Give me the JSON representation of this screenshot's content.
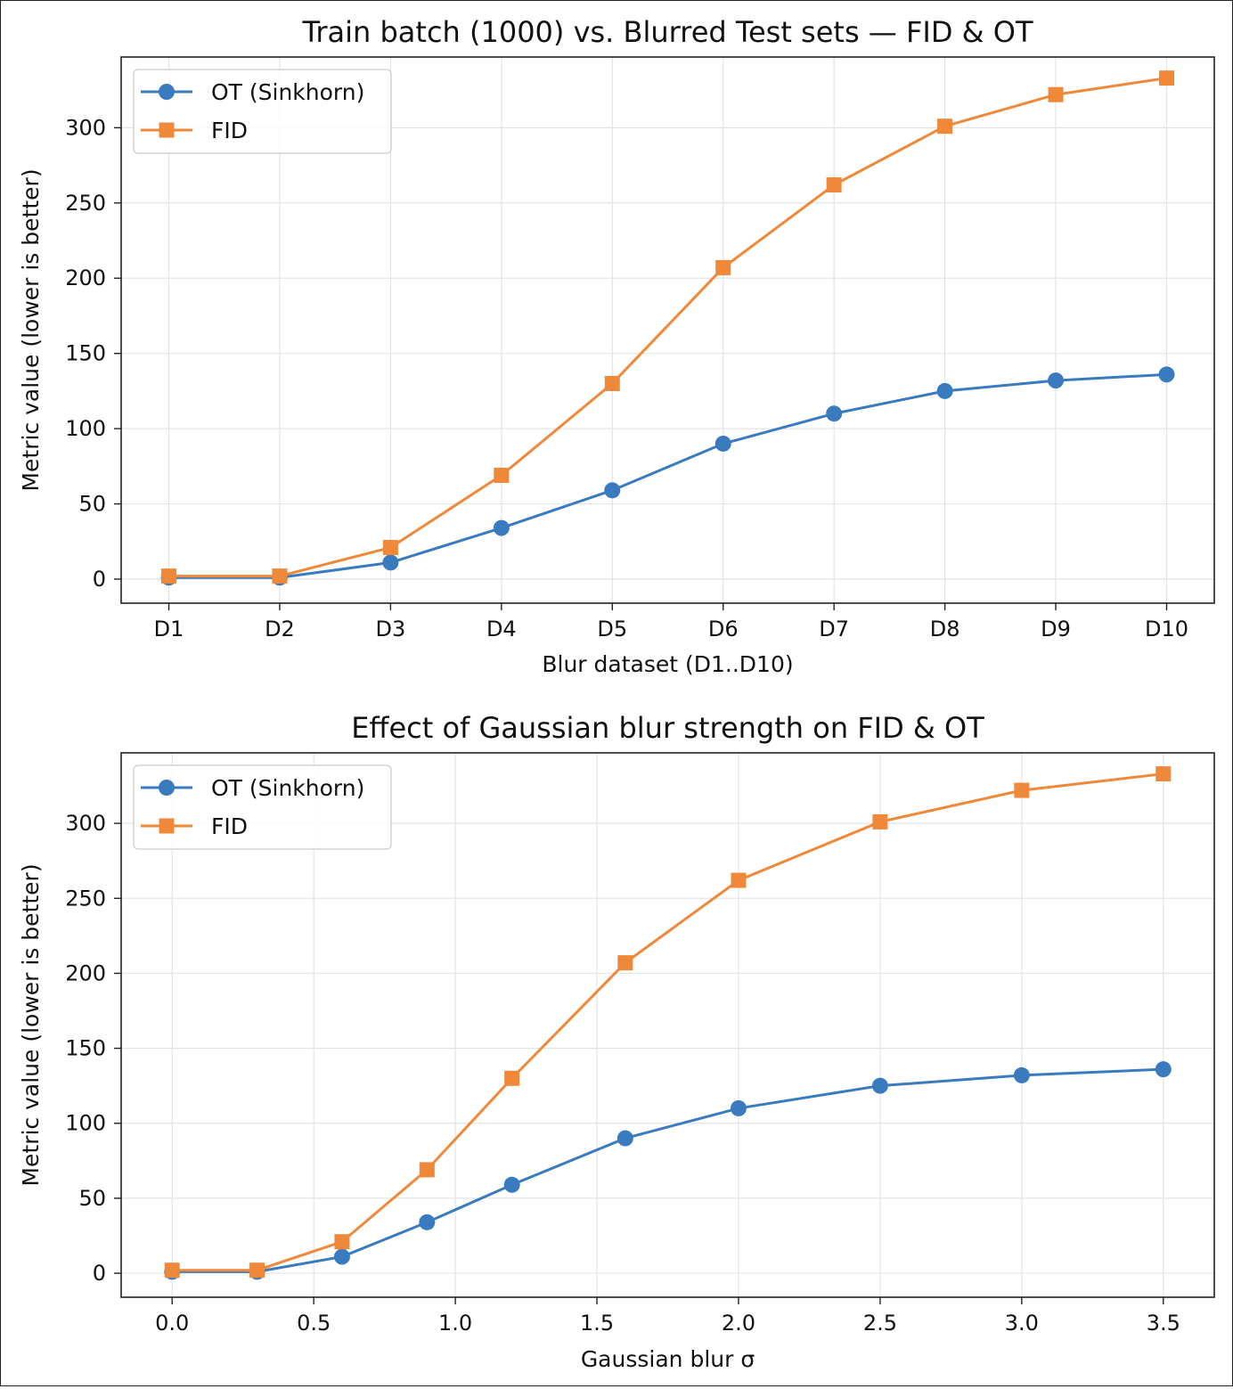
{
  "chart_data": [
    {
      "type": "line",
      "title": "Train batch (1000) vs. Blurred Test sets — FID & OT",
      "xlabel": "Blur dataset (D1..D10)",
      "ylabel": "Metric value (lower is better)",
      "x_type": "category",
      "categories": [
        "D1",
        "D2",
        "D3",
        "D4",
        "D5",
        "D6",
        "D7",
        "D8",
        "D9",
        "D10"
      ],
      "ylim": [
        -16,
        347
      ],
      "yticks": [
        0,
        50,
        100,
        150,
        200,
        250,
        300
      ],
      "grid": true,
      "legend_position": "upper-left",
      "series": [
        {
          "name": "OT (Sinkhorn)",
          "color": "#3a7bbf",
          "marker": "circle",
          "values": [
            1,
            1,
            11,
            34,
            59,
            90,
            110,
            125,
            132,
            136
          ]
        },
        {
          "name": "FID",
          "color": "#f0883a",
          "marker": "square",
          "values": [
            2,
            2,
            21,
            69,
            130,
            207,
            262,
            301,
            322,
            333
          ]
        }
      ]
    },
    {
      "type": "line",
      "title": "Effect of Gaussian blur strength on FID & OT",
      "xlabel": "Gaussian blur σ",
      "ylabel": "Metric value (lower is better)",
      "x_type": "numeric",
      "x": [
        0.0,
        0.3,
        0.6,
        0.9,
        1.2,
        1.6,
        2.0,
        2.5,
        3.0,
        3.5
      ],
      "xlim": [
        -0.18,
        3.68
      ],
      "xticks": [
        "0.0",
        "0.5",
        "1.0",
        "1.5",
        "2.0",
        "2.5",
        "3.0",
        "3.5"
      ],
      "ylim": [
        -16,
        347
      ],
      "yticks": [
        0,
        50,
        100,
        150,
        200,
        250,
        300
      ],
      "grid": true,
      "legend_position": "upper-left",
      "series": [
        {
          "name": "OT (Sinkhorn)",
          "color": "#3a7bbf",
          "marker": "circle",
          "values": [
            1,
            1,
            11,
            34,
            59,
            90,
            110,
            125,
            132,
            136
          ]
        },
        {
          "name": "FID",
          "color": "#f0883a",
          "marker": "square",
          "values": [
            2,
            2,
            21,
            69,
            130,
            207,
            262,
            301,
            322,
            333
          ]
        }
      ]
    }
  ]
}
